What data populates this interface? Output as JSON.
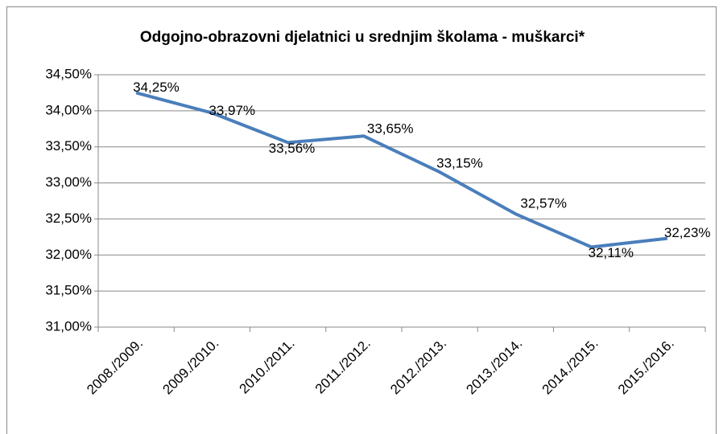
{
  "chart_data": {
    "type": "line",
    "title": "Odgojno-obrazovni  djelatnici u srednjim školama - muškarci*",
    "categories": [
      "2008./2009.",
      "2009./2010.",
      "2010./2011.",
      "2011./2012.",
      "2012./2013.",
      "2013./2014.",
      "2014./2015.",
      "2015./2016."
    ],
    "series": [
      {
        "name": "muškarci",
        "color": "#4a7ebb",
        "values": [
          34.25,
          33.97,
          33.56,
          33.65,
          33.15,
          32.57,
          32.11,
          32.23
        ],
        "value_labels": [
          "34,25%",
          "33,97%",
          "33,56%",
          "33,65%",
          "33,15%",
          "32,57%",
          "32,11%",
          "32,23%"
        ]
      }
    ],
    "ylim": [
      31,
      34.5
    ],
    "yticks": [
      {
        "value": 31,
        "label": "31,00%"
      },
      {
        "value": 31.5,
        "label": "31,50%"
      },
      {
        "value": 32,
        "label": "32,00%"
      },
      {
        "value": 32.5,
        "label": "32,50%"
      },
      {
        "value": 33,
        "label": "33,00%"
      },
      {
        "value": 33.5,
        "label": "33,50%"
      },
      {
        "value": 34,
        "label": "34,00%"
      },
      {
        "value": 34.5,
        "label": "34,50%"
      }
    ],
    "grid": true
  }
}
